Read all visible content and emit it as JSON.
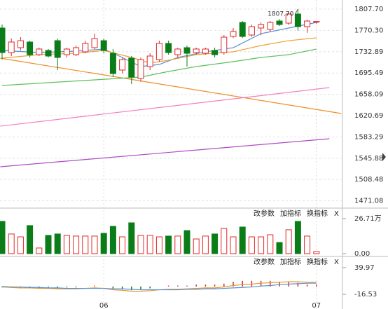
{
  "chart_data": [
    {
      "type": "candlestick",
      "annotation": "1807.70",
      "open": [
        1774.5,
        1731.4,
        1740.0,
        1749.9,
        1727.7,
        1735.1,
        1752.3,
        1727.7,
        1727.7,
        1732.7,
        1740.0,
        1752.3,
        1730.2,
        1700.7,
        1721.6,
        1685.9,
        1706.8,
        1719.1,
        1747.4,
        1727.7,
        1740.0,
        1731.4,
        1730.2,
        1735.1,
        1731.4,
        1759.7,
        1784.3,
        1762.2,
        1774.5,
        1772.0,
        1786.8,
        1783.1,
        1799.1,
        1776.9,
        1785.0
      ],
      "high": [
        1780.6,
        1756.0,
        1758.5,
        1752.3,
        1740.0,
        1737.6,
        1756.0,
        1740.0,
        1743.7,
        1752.3,
        1764.6,
        1756.0,
        1737.6,
        1722.8,
        1725.3,
        1722.8,
        1730.2,
        1752.3,
        1752.3,
        1740.0,
        1743.7,
        1740.0,
        1740.0,
        1740.0,
        1762.2,
        1774.5,
        1786.8,
        1780.6,
        1784.3,
        1786.8,
        1790.0,
        1802.0,
        1807.7,
        1789.0,
        1787.0
      ],
      "low": [
        1719.1,
        1725.3,
        1735.1,
        1722.8,
        1725.3,
        1722.8,
        1700.7,
        1722.8,
        1725.3,
        1730.2,
        1737.6,
        1730.2,
        1688.4,
        1694.5,
        1676.1,
        1680.0,
        1700.7,
        1715.0,
        1727.7,
        1722.8,
        1706.8,
        1727.7,
        1727.7,
        1722.8,
        1727.7,
        1757.0,
        1757.0,
        1759.0,
        1762.0,
        1768.0,
        1778.0,
        1780.0,
        1770.0,
        1766.0,
        1782.0
      ],
      "close": [
        1731.4,
        1749.9,
        1752.3,
        1727.7,
        1737.6,
        1725.3,
        1722.8,
        1737.6,
        1740.0,
        1747.4,
        1756.0,
        1735.1,
        1694.5,
        1719.1,
        1688.4,
        1719.1,
        1725.3,
        1747.4,
        1731.4,
        1737.6,
        1730.2,
        1737.6,
        1737.6,
        1727.7,
        1758.5,
        1768.3,
        1759.7,
        1776.9,
        1780.6,
        1784.3,
        1780.6,
        1799.1,
        1776.9,
        1786.8,
        1786.0
      ],
      "up_color": "#e02828",
      "down_color": "#0b7d18",
      "ma": [
        {
          "color": "#5b8fd6",
          "x": [
            0,
            4,
            8,
            11,
            13,
            15,
            17,
            19,
            22,
            25,
            28,
            31,
            34
          ],
          "values": [
            1735.1,
            1731.4,
            1733.9,
            1737.6,
            1722.8,
            1706.8,
            1710.5,
            1722.8,
            1732.7,
            1740.0,
            1764.6,
            1774.5,
            1784.3
          ]
        },
        {
          "color": "#f0a030",
          "x": [
            0,
            4,
            8,
            11,
            14,
            16,
            18,
            21,
            25,
            28,
            31,
            34
          ],
          "values": [
            1721.6,
            1727.7,
            1730.2,
            1735.1,
            1722.8,
            1713.0,
            1717.9,
            1727.7,
            1732.7,
            1743.7,
            1752.3,
            1757.3
          ]
        },
        {
          "color": "#5cc05c",
          "x": [
            0,
            15,
            18,
            21,
            25,
            28,
            31,
            34
          ],
          "values": [
            1673.6,
            1688.4,
            1698.2,
            1706.8,
            1715.4,
            1722.8,
            1727.7,
            1737.6
          ]
        }
      ],
      "trendlines": [
        {
          "color": "#f08c28",
          "x": [
            -0.2,
            36.7
          ],
          "values": [
            1721.6,
            1624.4
          ]
        },
        {
          "color": "#f27fc0",
          "x": [
            -0.2,
            35.4
          ],
          "values": [
            1602.2,
            1669.9
          ]
        },
        {
          "color": "#b04cc4",
          "x": [
            -0.2,
            35.4
          ],
          "values": [
            1530.9,
            1580.1
          ]
        }
      ],
      "xticks": [
        {
          "value": 11,
          "label": "06"
        },
        {
          "value": 34,
          "label": "07"
        }
      ],
      "ylim": [
        1458.3,
        1823.7
      ],
      "yticks": [
        {
          "value": 1807.7,
          "label": "1807.70"
        },
        {
          "value": 1770.3,
          "label": "1770.30"
        },
        1732.89,
        1695.49,
        1658.09,
        1620.69,
        1583.29,
        1545.88,
        1508.48,
        1471.08
      ],
      "grid": true
    },
    {
      "type": "bar",
      "buttons": [
        "改参数",
        "加指标",
        "换指标",
        "X"
      ],
      "values": [
        24.6,
        15.0,
        12.8,
        21.4,
        4.3,
        13.9,
        15.0,
        13.9,
        13.4,
        13.4,
        13.4,
        15.5,
        20.8,
        12.8,
        23.5,
        13.9,
        13.9,
        12.8,
        13.4,
        13.4,
        17.6,
        11.2,
        13.4,
        15.0,
        19.2,
        12.8,
        20.3,
        12.8,
        12.8,
        14.4,
        8.5,
        18.2,
        24.6,
        13.4,
        1.6
      ],
      "ylim": [
        -2.14,
        34.19
      ],
      "yticks": [
        {
          "value": 26.71,
          "label": "26.71万"
        },
        {
          "value": 0,
          "label": "0.00"
        }
      ]
    },
    {
      "type": "macd",
      "buttons": [
        "改参数",
        "加指标",
        "换指标",
        "X"
      ],
      "dif": [
        -1,
        -2,
        -3,
        -3,
        -4,
        -4,
        -5,
        -5,
        -5,
        -4,
        -3,
        -4,
        -7,
        -8,
        -10,
        -10,
        -9,
        -7,
        -6,
        -6,
        -5,
        -4,
        -3,
        -3,
        -1,
        2,
        4,
        5,
        7,
        8,
        9,
        10,
        10,
        9,
        9
      ],
      "dea": [
        0,
        -1,
        -1,
        -2,
        -2,
        -3,
        -3,
        -4,
        -4,
        -4,
        -4,
        -4,
        -5,
        -5,
        -6,
        -7,
        -7,
        -7,
        -7,
        -7,
        -6,
        -6,
        -5,
        -5,
        -4,
        -3,
        -2,
        -1,
        1,
        2,
        4,
        5,
        6,
        7,
        7
      ],
      "hist": [
        -2,
        -2,
        -4,
        -2,
        -4,
        -2,
        -4,
        -2,
        -2,
        0,
        2,
        0,
        -4,
        -6,
        -8,
        -6,
        -4,
        0,
        2,
        2,
        2,
        4,
        4,
        4,
        6,
        10,
        12,
        12,
        12,
        12,
        10,
        10,
        8,
        4,
        4
      ],
      "dif_color": "#e09a30",
      "dea_color": "#5b8fd6",
      "ylim": [
        -47.8,
        62.3
      ],
      "yticks": [
        39.97,
        -16.53
      ]
    }
  ]
}
